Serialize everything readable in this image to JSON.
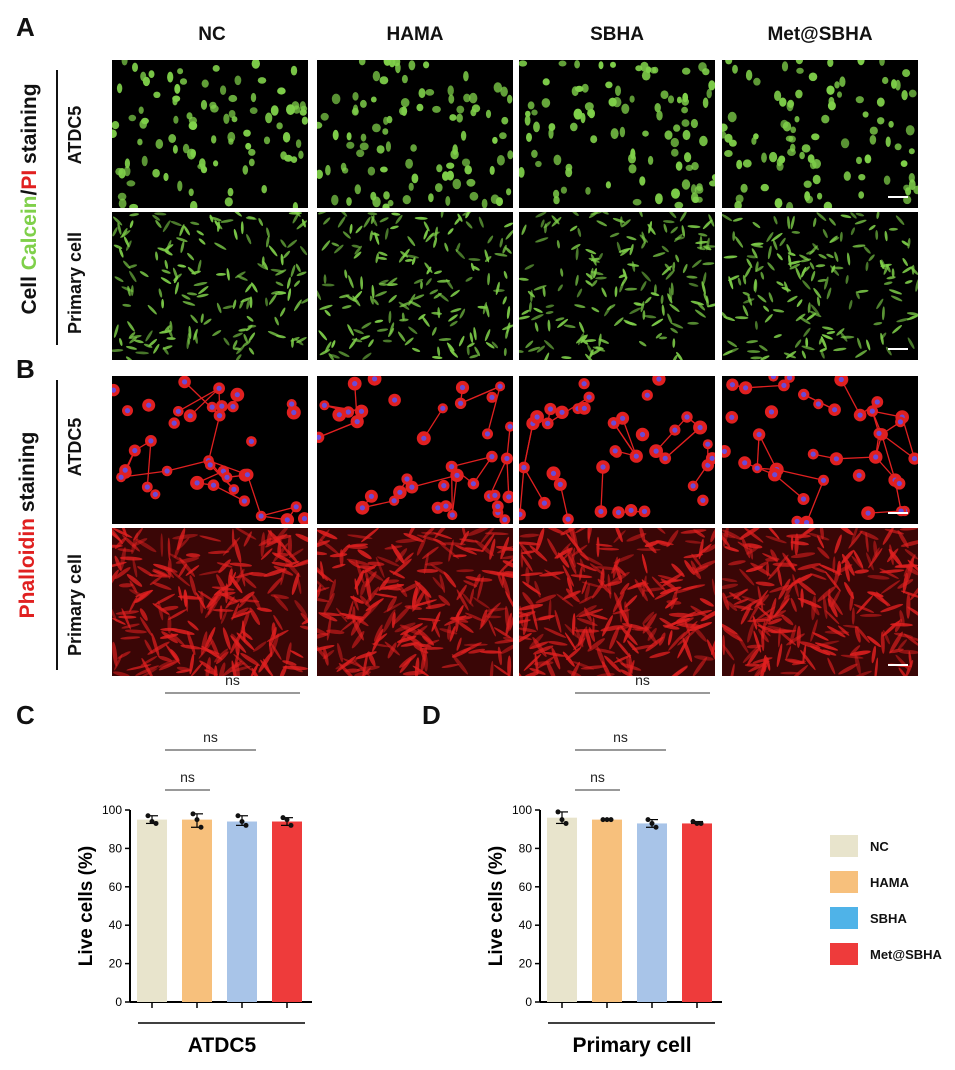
{
  "panels": {
    "a": "A",
    "b": "B",
    "c": "C",
    "d": "D"
  },
  "columns": [
    "NC",
    "HAMA",
    "SBHA",
    "Met@SBHA"
  ],
  "rows": {
    "atdc5": "ATDC5",
    "primary": "Primary cell"
  },
  "stain_a": {
    "word1": "Cell ",
    "word2": "Calcein",
    "slash": "/",
    "word3": "PI",
    "word4": " staining"
  },
  "stain_b": {
    "word1": "Phalloidin",
    "word2": " staining"
  },
  "colors": {
    "calcein": "#7fd04a",
    "pi": "#e02020",
    "phalloidin": "#e02020",
    "nc": "#e8e4cc",
    "hama": "#f7c07c",
    "sbha": "#a8c4e8",
    "met": "#ee3b3b",
    "sbha_legend": "#4fb3e8"
  },
  "significance": [
    "ns",
    "ns",
    "ns"
  ],
  "legend": [
    "NC",
    "HAMA",
    "SBHA",
    "Met@SBHA"
  ],
  "chart_data": [
    {
      "type": "bar",
      "panel": "C",
      "categories": [
        "NC",
        "HAMA",
        "SBHA",
        "Met@SBHA"
      ],
      "values": [
        95,
        95,
        94,
        94
      ],
      "points": [
        [
          97,
          94,
          93
        ],
        [
          98,
          95,
          91
        ],
        [
          97,
          94,
          92
        ],
        [
          96,
          95,
          92
        ]
      ],
      "xlabel": "ATDC5",
      "ylabel": "Live cells (%)",
      "ylim": [
        0,
        100
      ],
      "yticks": [
        0,
        20,
        40,
        60,
        80,
        100
      ]
    },
    {
      "type": "bar",
      "panel": "D",
      "categories": [
        "NC",
        "HAMA",
        "SBHA",
        "Met@SBHA"
      ],
      "values": [
        96,
        95,
        93,
        93
      ],
      "points": [
        [
          99,
          95,
          93
        ],
        [
          95,
          95,
          95
        ],
        [
          95,
          93,
          91
        ],
        [
          94,
          93,
          93
        ]
      ],
      "xlabel": "Primary cell",
      "ylabel": "Live cells (%)",
      "ylim": [
        0,
        100
      ],
      "yticks": [
        0,
        20,
        40,
        60,
        80,
        100
      ]
    }
  ]
}
